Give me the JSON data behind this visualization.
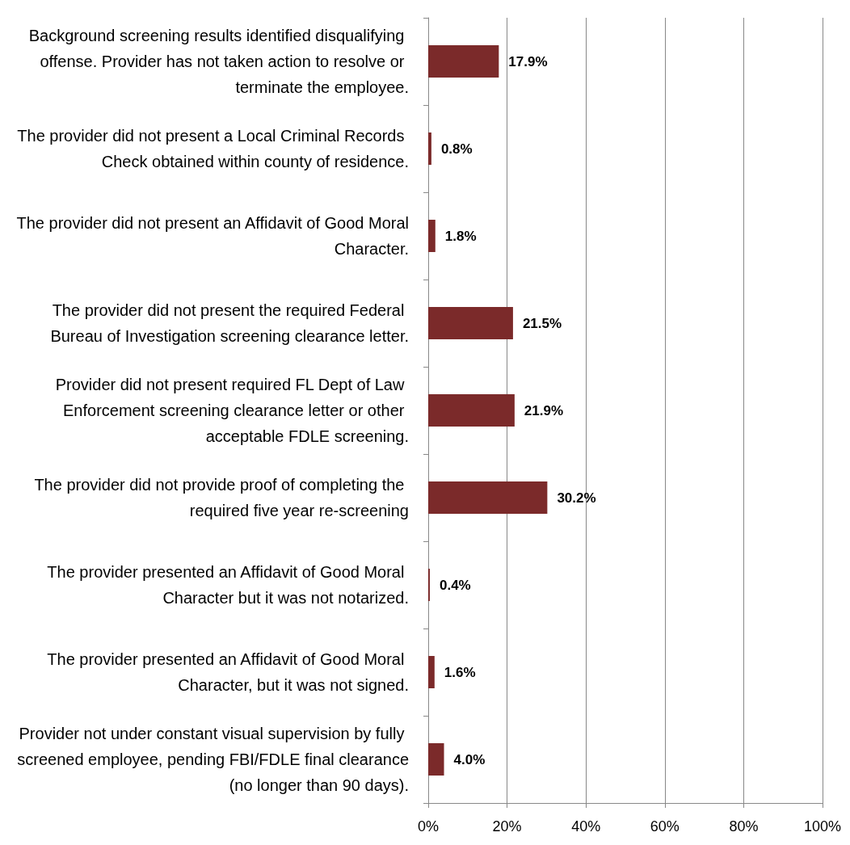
{
  "chart_data": {
    "type": "bar",
    "orientation": "horizontal",
    "categories": [
      "Background screening results identified disqualifying offense. Provider has not taken action to resolve or terminate the employee.",
      "The provider did not present a Local Criminal Records Check obtained within county of residence.",
      "The provider did not present an Affidavit of Good Moral Character.",
      "The provider did not present the required Federal Bureau of Investigation screening clearance letter.",
      "Provider did not present required FL Dept of Law Enforcement screening clearance letter or other acceptable FDLE screening.",
      "The provider did not provide proof of completing the required five year re-screening",
      "The provider presented an Affidavit of Good Moral Character but it was not notarized.",
      "The provider presented an Affidavit of Good Moral Character, but it was not signed.",
      "Provider not under constant visual supervision by fully screened employee, pending FBI/FDLE final clearance (no longer than 90 days)."
    ],
    "values": [
      17.9,
      0.8,
      1.8,
      21.5,
      21.9,
      30.2,
      0.4,
      1.6,
      4.0
    ],
    "value_labels": [
      "17.9%",
      "0.8%",
      "1.8%",
      "21.5%",
      "21.9%",
      "30.2%",
      "0.4%",
      "1.6%",
      "4.0%"
    ],
    "color": "#7b2a2a",
    "xlim": [
      0,
      100
    ],
    "xticks": [
      {
        "value": 0,
        "label": "0%"
      },
      {
        "value": 20,
        "label": "20%"
      },
      {
        "value": 40,
        "label": "40%"
      },
      {
        "value": 60,
        "label": "60%"
      },
      {
        "value": 80,
        "label": "80%"
      },
      {
        "value": 100,
        "label": "100%"
      }
    ],
    "grid": "x"
  }
}
